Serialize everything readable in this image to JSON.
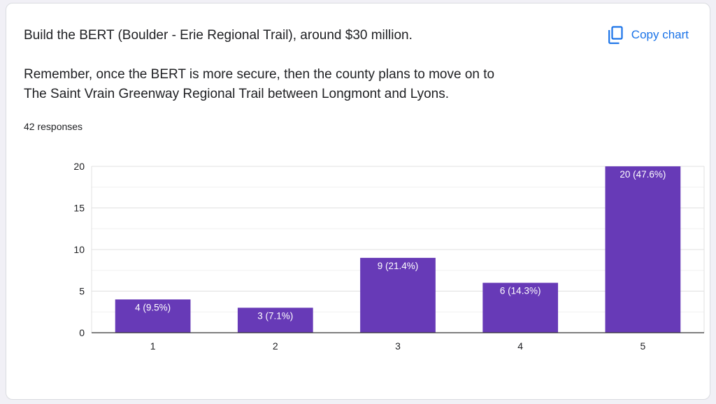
{
  "question": {
    "title": "Build the BERT (Boulder - Erie Regional Trail), around $30 million.",
    "description_line1": "Remember, once the BERT is more secure, then the county plans to move on to",
    "description_line2": "The Saint Vrain Greenway Regional Trail between Longmont and Lyons."
  },
  "responses_label": "42 responses",
  "copy_chart": {
    "label": "Copy chart",
    "icon": "copy-icon"
  },
  "colors": {
    "bar": "#673ab7",
    "accent": "#1a73e8",
    "grid": "#e0e0e0",
    "axis": "#333333"
  },
  "chart_data": {
    "type": "bar",
    "categories": [
      "1",
      "2",
      "3",
      "4",
      "5"
    ],
    "values": [
      4,
      3,
      9,
      6,
      20
    ],
    "data_labels": [
      "4 (9.5%)",
      "3 (7.1%)",
      "9 (21.4%)",
      "6 (14.3%)",
      "20 (47.6%)"
    ],
    "yticks": [
      0,
      5,
      10,
      15,
      20
    ],
    "ylim": [
      0,
      20
    ],
    "grid": true,
    "minor_grid": true,
    "xlabel": "",
    "ylabel": ""
  }
}
